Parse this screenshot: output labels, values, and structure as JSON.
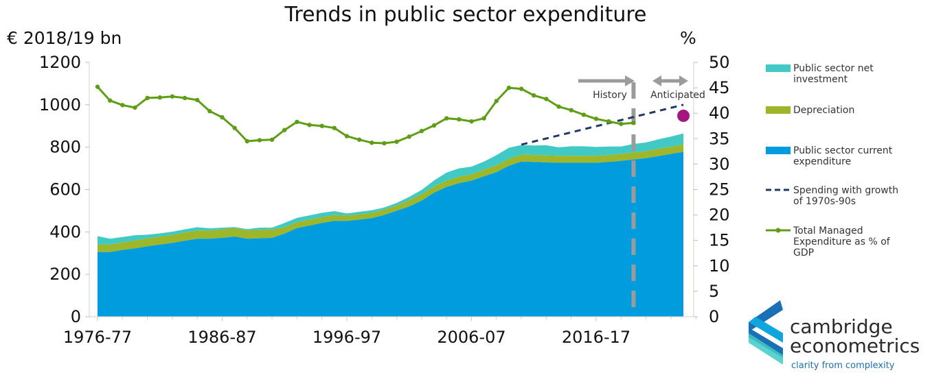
{
  "colors": {
    "current": "#009CDE",
    "depreciation": "#9DB62A",
    "investment": "#41C9C6",
    "tme": "#5E9E14",
    "projection": "#1F3864",
    "divider": "#9B9B9B",
    "dot": "#A4177F",
    "logo_blue": "#1a6fb5"
  },
  "chart_data": {
    "type": "area",
    "title": "Trends in public sector expenditure",
    "y_left_label": "€ 2018/19 bn",
    "y_right_label": "%",
    "y_left_lim": [
      0,
      1200
    ],
    "y_left_ticks": [
      "0",
      "200",
      "400",
      "600",
      "800",
      "1000",
      "1200"
    ],
    "y_right_lim": [
      0,
      50
    ],
    "y_right_ticks": [
      "0",
      "5",
      "10",
      "15",
      "20",
      "25",
      "30",
      "35",
      "40",
      "45",
      "50"
    ],
    "x_start_year": 1976,
    "x_tick_labels": [
      "1976-77",
      "1986-87",
      "1996-97",
      "2006-07",
      "2016-17"
    ],
    "x_ticks_years": [
      1976,
      1986,
      1996,
      2006,
      2016
    ],
    "series": [
      {
        "name": "Public sector current expenditure",
        "kind": "stacked-area",
        "values": [
          305,
          305,
          315,
          322,
          332,
          340,
          348,
          358,
          368,
          368,
          372,
          378,
          368,
          370,
          372,
          392,
          418,
          430,
          442,
          452,
          452,
          458,
          465,
          480,
          500,
          520,
          548,
          585,
          612,
          630,
          642,
          662,
          682,
          712,
          732,
          730,
          728,
          726,
          726,
          726,
          726,
          730,
          735,
          742,
          748,
          758,
          768,
          778
        ]
      },
      {
        "name": "Depreciation",
        "kind": "stacked-area",
        "values": [
          35,
          35,
          36,
          37,
          37,
          38,
          38,
          39,
          39,
          39,
          40,
          40,
          40,
          40,
          40,
          30,
          28,
          28,
          28,
          28,
          25,
          25,
          25,
          25,
          25,
          30,
          30,
          30,
          30,
          30,
          30,
          32,
          32,
          33,
          33,
          33,
          33,
          33,
          33,
          33,
          33,
          33,
          33,
          33,
          33,
          34,
          34,
          35
        ]
      },
      {
        "name": "Public sector net investment",
        "kind": "stacked-area",
        "values": [
          40,
          28,
          25,
          25,
          18,
          15,
          15,
          15,
          15,
          10,
          8,
          5,
          5,
          10,
          8,
          20,
          20,
          20,
          20,
          18,
          10,
          12,
          12,
          10,
          12,
          15,
          20,
          28,
          38,
          40,
          36,
          38,
          48,
          52,
          45,
          45,
          48,
          40,
          45,
          45,
          42,
          40,
          35,
          40,
          41,
          45,
          48,
          52
        ]
      },
      {
        "name": "Spending with growth of 1970s-90s",
        "kind": "dashed-line",
        "axis": "left",
        "x": [
          2010,
          2023
        ],
        "values": [
          812,
          1000
        ]
      },
      {
        "name": "Total Managed Expenditure as % of GDP",
        "kind": "line-markers",
        "axis": "right",
        "values": [
          45.2,
          42.5,
          41.6,
          41.1,
          43.0,
          43.1,
          43.3,
          43.0,
          42.6,
          40.4,
          39.2,
          37.1,
          34.5,
          34.7,
          34.8,
          36.7,
          38.3,
          37.7,
          37.5,
          37.1,
          35.5,
          34.8,
          34.2,
          34.1,
          34.4,
          35.4,
          36.5,
          37.6,
          39.0,
          38.8,
          38.4,
          39.0,
          42.4,
          45.0,
          44.8,
          43.5,
          42.8,
          41.3,
          40.6,
          39.7,
          38.9,
          38.4,
          37.9,
          38.1
        ]
      },
      {
        "name": "Anticipated point",
        "kind": "marker",
        "axis": "right",
        "x": [
          2023
        ],
        "values": [
          39.5
        ]
      }
    ],
    "divider_year": 2019,
    "annotations": {
      "history": "History",
      "anticipated": "Anticipated"
    }
  },
  "legend": [
    {
      "key": "investment",
      "label": "Public sector net investment",
      "swatch": "box"
    },
    {
      "key": "depreciation",
      "label": "Depreciation",
      "swatch": "box"
    },
    {
      "key": "current",
      "label": "Public sector current expenditure",
      "swatch": "box"
    },
    {
      "key": "projection",
      "label": "Spending with growth of 1970s-90s",
      "swatch": "dash"
    },
    {
      "key": "tme",
      "label": "Total Managed Expenditure as % of GDP",
      "swatch": "marker-line"
    }
  ],
  "logo": {
    "line1": "cambridge",
    "line2": "econometrics",
    "tagline": "clarity from complexity"
  }
}
